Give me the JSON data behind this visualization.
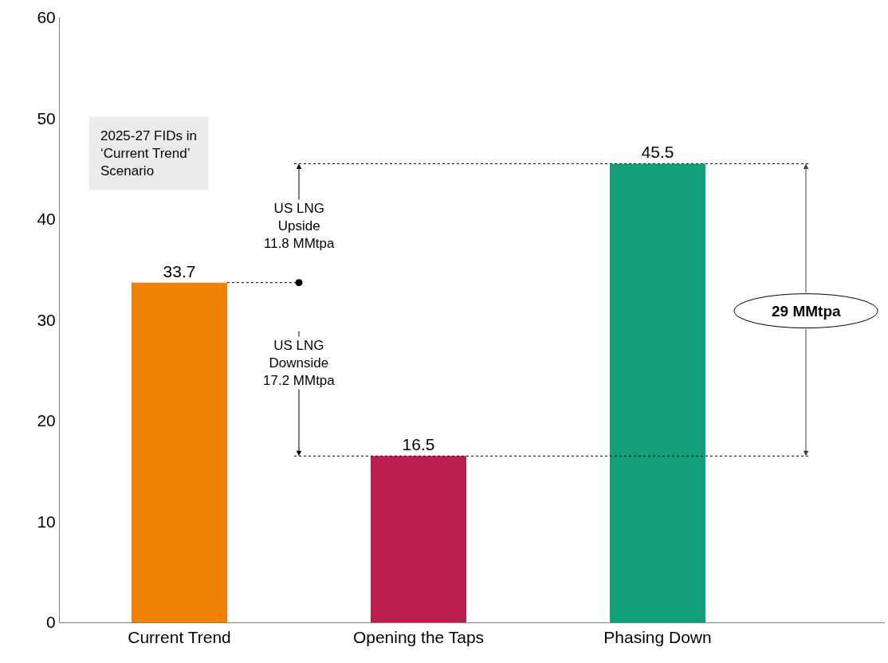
{
  "chart_data": {
    "type": "bar",
    "categories": [
      "Current Trend",
      "Opening the Taps",
      "Phasing Down"
    ],
    "values": [
      33.7,
      16.5,
      45.5
    ],
    "colors": [
      "#ef8200",
      "#bc1f4f",
      "#12a07c"
    ],
    "ylim": [
      0,
      60
    ],
    "yticks": [
      0,
      10,
      20,
      30,
      40,
      50,
      60
    ],
    "ref_lines": [
      {
        "axis": "y",
        "value": 45.5,
        "color": "#000000",
        "line_style": "dotted"
      },
      {
        "axis": "y",
        "value": 16.5,
        "color": "#000000",
        "line_style": "dotted"
      }
    ],
    "legend": false,
    "data_labels": true,
    "annotations": [
      "2025-27 FIDs in\n‘Current Trend’\nScenario",
      {
        "text": "US LNG\nUpside\n11.8 MMtpa",
        "y": 45.5
      },
      {
        "text": "US LNG\nDownside\n17.2 MMtpa",
        "y": 16.5
      },
      {
        "text": "29 MMtpa",
        "y": 45.5
      }
    ]
  }
}
